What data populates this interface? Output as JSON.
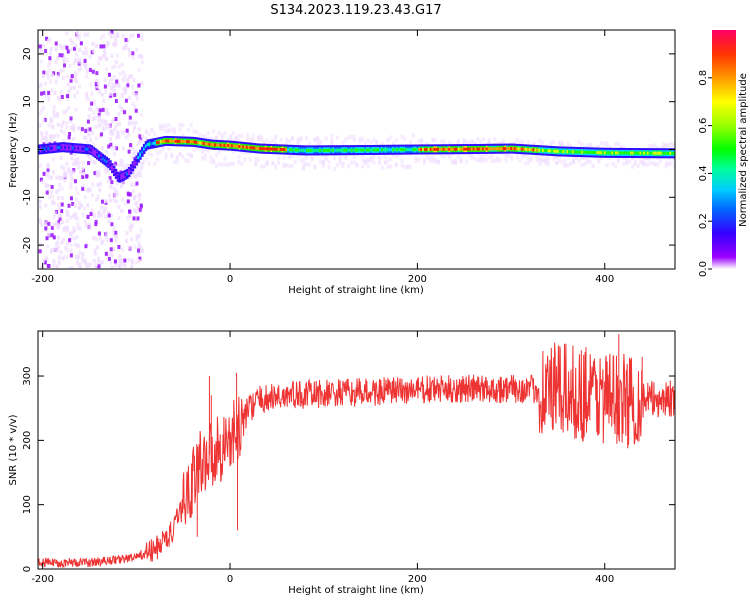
{
  "title": "S134.2023.119.23.43.G17",
  "chart_data": [
    {
      "type": "heatmap",
      "xlabel": "Height of straight line (km)",
      "ylabel": "Frequency (Hz)",
      "xlim": [
        -205,
        475
      ],
      "ylim": [
        -25,
        25
      ],
      "xticks": [
        -200,
        0,
        200,
        400
      ],
      "yticks": [
        20,
        10,
        0,
        -10,
        -20
      ],
      "colorbar": {
        "label": "Normalized spectral amplitude",
        "range": [
          0,
          1
        ],
        "ticks": [
          "0.0",
          "0.2",
          "0.4",
          "0.6",
          "0.8"
        ],
        "tick_values": [
          0.0,
          0.2,
          0.4,
          0.6,
          0.8
        ]
      },
      "ridge": {
        "description_free": true,
        "points": [
          [
            -205,
            0.0
          ],
          [
            -180,
            0.5
          ],
          [
            -150,
            0.0
          ],
          [
            -130,
            -3.0
          ],
          [
            -120,
            -6.0
          ],
          [
            -110,
            -5.0
          ],
          [
            -100,
            -2.0
          ],
          [
            -90,
            1.0
          ],
          [
            -70,
            1.8
          ],
          [
            -40,
            1.6
          ],
          [
            -20,
            1.0
          ],
          [
            0,
            0.8
          ],
          [
            30,
            0.2
          ],
          [
            80,
            -0.2
          ],
          [
            150,
            -0.1
          ],
          [
            200,
            0.0
          ],
          [
            260,
            0.1
          ],
          [
            300,
            0.2
          ],
          [
            350,
            -0.4
          ],
          [
            400,
            -0.7
          ],
          [
            475,
            -0.8
          ]
        ]
      }
    },
    {
      "type": "line",
      "xlabel": "Height of straight line (km)",
      "ylabel": "SNR (10 * v/v)",
      "xlim": [
        -205,
        475
      ],
      "ylim": [
        0,
        370
      ],
      "xticks": [
        -200,
        0,
        200,
        400
      ],
      "yticks": [
        0,
        100,
        200,
        300
      ],
      "color": "#ee3333",
      "series_envelope": [
        [
          -205,
          10
        ],
        [
          -150,
          10
        ],
        [
          -100,
          18
        ],
        [
          -80,
          30
        ],
        [
          -60,
          60
        ],
        [
          -50,
          100
        ],
        [
          -40,
          140
        ],
        [
          -30,
          170
        ],
        [
          -20,
          180
        ],
        [
          -10,
          190
        ],
        [
          0,
          200
        ],
        [
          10,
          220
        ],
        [
          20,
          250
        ],
        [
          30,
          262
        ],
        [
          60,
          270
        ],
        [
          100,
          272
        ],
        [
          150,
          275
        ],
        [
          200,
          278
        ],
        [
          250,
          280
        ],
        [
          300,
          280
        ],
        [
          340,
          278
        ],
        [
          360,
          275
        ],
        [
          380,
          272
        ],
        [
          400,
          268
        ],
        [
          420,
          262
        ],
        [
          440,
          262
        ],
        [
          475,
          266
        ]
      ]
    }
  ]
}
